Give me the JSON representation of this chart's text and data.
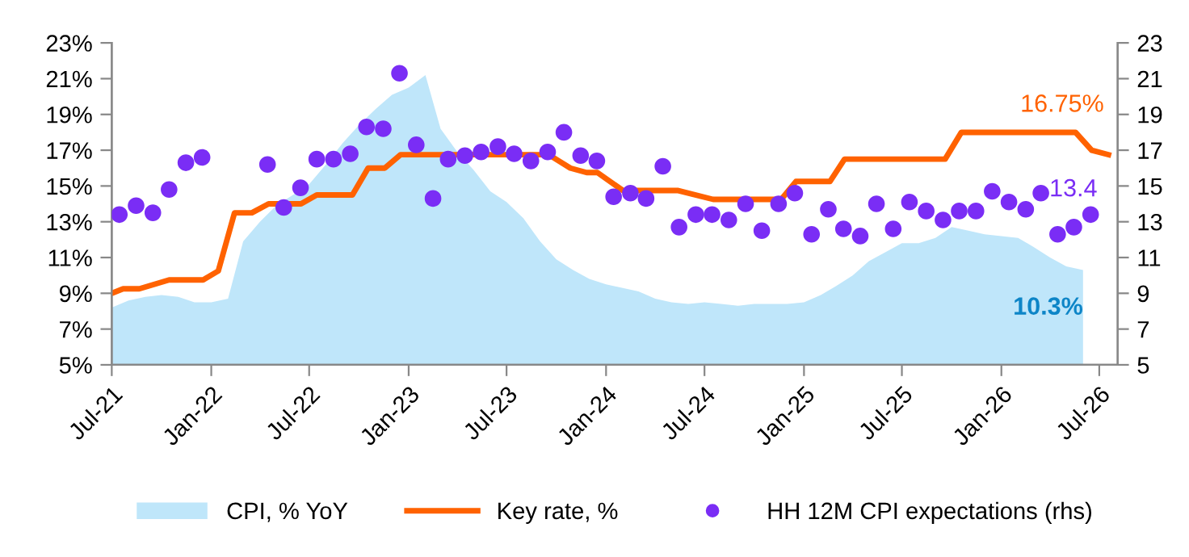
{
  "chart_data": {
    "type": "area",
    "x": [
      "2021-07-01",
      "2021-08-01",
      "2021-09-01",
      "2021-10-01",
      "2021-11-01",
      "2021-12-01",
      "2022-01-01",
      "2022-02-01",
      "2022-03-01",
      "2022-04-01",
      "2022-05-01",
      "2022-06-01",
      "2022-07-01",
      "2022-08-01",
      "2022-09-01",
      "2022-10-01",
      "2022-11-01",
      "2022-12-01",
      "2023-01-01",
      "2023-02-01",
      "2023-03-01",
      "2023-04-01",
      "2023-05-01",
      "2023-06-01",
      "2023-07-01",
      "2023-08-01",
      "2023-09-01",
      "2023-10-01",
      "2023-11-01",
      "2023-12-01",
      "2024-01-01",
      "2024-02-01",
      "2024-03-01",
      "2024-04-01",
      "2024-05-01",
      "2024-06-01",
      "2024-07-01",
      "2024-08-01",
      "2024-09-01",
      "2024-10-01",
      "2024-11-01",
      "2024-12-01",
      "2025-01-01",
      "2025-02-01",
      "2025-03-01",
      "2025-04-01",
      "2025-05-01",
      "2025-06-01",
      "2025-07-01",
      "2025-08-01",
      "2025-09-01",
      "2025-10-01",
      "2025-11-01",
      "2025-12-01",
      "2026-01-01",
      "2026-02-01",
      "2026-03-01",
      "2026-04-01",
      "2026-05-01",
      "2026-06-01"
    ],
    "series": [
      {
        "name": "CPI, % YoY",
        "color": "#bfe6fa",
        "values": [
          8.2,
          8.6,
          8.8,
          8.9,
          8.8,
          8.5,
          8.5,
          8.7,
          11.9,
          13.0,
          13.9,
          14.5,
          15.1,
          16.2,
          17.4,
          18.4,
          19.3,
          20.1,
          20.5,
          21.2,
          18.2,
          16.9,
          15.9,
          14.7,
          14.1,
          13.2,
          11.9,
          10.9,
          10.3,
          9.8,
          9.5,
          9.3,
          9.1,
          8.7,
          8.5,
          8.4,
          8.5,
          8.4,
          8.3,
          8.4,
          8.4,
          8.4,
          8.5,
          8.9,
          9.4,
          10.0,
          10.8,
          11.3,
          11.8,
          11.8,
          12.1,
          12.7,
          12.5,
          12.3,
          12.2,
          12.1,
          11.6,
          11.0,
          10.5,
          10.3
        ]
      },
      {
        "name": "Key rate, %",
        "type": "line",
        "color": "#ff6200",
        "x": [
          "2021-07-01",
          "2021-07-22",
          "2021-08-21",
          "2021-10-15",
          "2021-12-17",
          "2022-01-14",
          "2022-02-13",
          "2022-03-17",
          "2022-04-17",
          "2022-06-16",
          "2022-07-15",
          "2022-09-19",
          "2022-10-18",
          "2022-11-18",
          "2022-12-17",
          "2023-09-17",
          "2023-10-27",
          "2023-11-26",
          "2023-12-16",
          "2024-02-01",
          "2024-05-12",
          "2024-07-17",
          "2024-11-20",
          "2024-12-17",
          "2025-02-18",
          "2025-03-17",
          "2025-09-19",
          "2025-10-19",
          "2026-05-18",
          "2026-06-17",
          "2026-07-18"
        ],
        "values": [
          9.0,
          9.25,
          9.25,
          9.75,
          9.75,
          10.25,
          13.5,
          13.5,
          14.0,
          14.0,
          14.5,
          14.5,
          16.0,
          16.0,
          16.75,
          16.75,
          16.0,
          15.75,
          15.75,
          14.75,
          14.75,
          14.25,
          14.25,
          15.25,
          15.25,
          16.5,
          16.5,
          18.0,
          18.0,
          17.0,
          16.75
        ]
      },
      {
        "name": "HH 12M CPI expectations (rhs)",
        "type": "scatter",
        "marker": "circle",
        "axis": "y2",
        "color": "#7a2df5",
        "x": [
          "2021-07-15",
          "2021-08-15",
          "2021-09-15",
          "2021-10-15",
          "2021-11-15",
          "2021-12-15",
          "2022-04-15",
          "2022-05-15",
          "2022-06-15",
          "2022-07-15",
          "2022-08-15",
          "2022-09-15",
          "2022-10-15",
          "2022-11-15",
          "2022-12-15",
          "2023-01-15",
          "2023-02-15",
          "2023-03-15",
          "2023-04-15",
          "2023-05-15",
          "2023-06-15",
          "2023-07-15",
          "2023-08-15",
          "2023-09-15",
          "2023-10-15",
          "2023-11-15",
          "2023-12-15",
          "2024-01-15",
          "2024-02-15",
          "2024-03-15",
          "2024-04-15",
          "2024-05-15",
          "2024-06-15",
          "2024-07-15",
          "2024-08-15",
          "2024-09-15",
          "2024-10-15",
          "2024-11-15",
          "2024-12-15",
          "2025-01-15",
          "2025-02-15",
          "2025-03-15",
          "2025-04-15",
          "2025-05-15",
          "2025-06-15",
          "2025-07-15",
          "2025-08-15",
          "2025-09-15",
          "2025-10-15",
          "2025-11-15",
          "2025-12-15",
          "2026-01-15",
          "2026-02-15",
          "2026-03-15",
          "2026-04-15",
          "2026-05-15",
          "2026-06-15"
        ],
        "values": [
          13.4,
          13.9,
          13.5,
          14.8,
          16.3,
          16.6,
          16.2,
          13.8,
          14.9,
          16.5,
          16.5,
          16.8,
          18.3,
          18.2,
          21.3,
          17.3,
          14.3,
          16.5,
          16.7,
          16.9,
          17.2,
          16.8,
          16.4,
          16.9,
          18.0,
          16.7,
          16.4,
          14.4,
          14.6,
          14.3,
          16.1,
          12.7,
          13.4,
          13.4,
          13.1,
          14.0,
          12.5,
          14.0,
          14.6,
          12.3,
          13.7,
          12.6,
          12.2,
          14.0,
          12.6,
          14.1,
          13.6,
          13.1,
          13.6,
          13.6,
          14.7,
          14.1,
          13.7,
          14.6,
          12.3,
          12.7,
          13.4
        ]
      }
    ],
    "xlim": [
      "2021-07-01",
      "2026-08-04"
    ],
    "xticks": [
      {
        "value": "2021-07-01",
        "label": "Jul-21"
      },
      {
        "value": "2022-01-01",
        "label": "Jan-22"
      },
      {
        "value": "2022-07-01",
        "label": "Jul-22"
      },
      {
        "value": "2023-01-01",
        "label": "Jan-23"
      },
      {
        "value": "2023-07-01",
        "label": "Jul-23"
      },
      {
        "value": "2024-01-01",
        "label": "Jan-24"
      },
      {
        "value": "2024-07-01",
        "label": "Jul-24"
      },
      {
        "value": "2025-01-01",
        "label": "Jan-25"
      },
      {
        "value": "2025-07-01",
        "label": "Jul-25"
      },
      {
        "value": "2026-01-01",
        "label": "Jan-26"
      },
      {
        "value": "2026-07-01",
        "label": "Jul-26"
      }
    ],
    "ylim": [
      5,
      23
    ],
    "yticks": [
      {
        "value": 5,
        "label": "5%"
      },
      {
        "value": 7,
        "label": "7%"
      },
      {
        "value": 9,
        "label": "9%"
      },
      {
        "value": 11,
        "label": "11%"
      },
      {
        "value": 13,
        "label": "13%"
      },
      {
        "value": 15,
        "label": "15%"
      },
      {
        "value": 17,
        "label": "17%"
      },
      {
        "value": 19,
        "label": "19%"
      },
      {
        "value": 21,
        "label": "21%"
      },
      {
        "value": 23,
        "label": "23%"
      }
    ],
    "y2lim": [
      5,
      23
    ],
    "y2ticks": [
      5,
      7,
      9,
      11,
      13,
      15,
      17,
      19,
      21,
      23
    ],
    "annotations": [
      {
        "text": "16.75%",
        "x": "2026-07-18",
        "y": 16.75
      },
      {
        "text": "13.4",
        "x": "2026-06-15",
        "y": 13.4
      },
      {
        "text": "10.3%",
        "x": "2026-06-01",
        "y": 10.3
      }
    ],
    "grid": false,
    "legend": "bottom"
  }
}
